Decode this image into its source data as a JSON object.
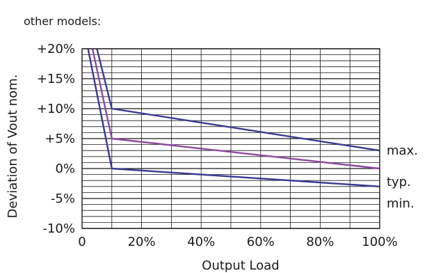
{
  "caption": "other models:",
  "chart_data": {
    "type": "line",
    "title": "",
    "xlabel": "Output Load",
    "ylabel": "Deviation of Vout nom.",
    "xlim": [
      0,
      100
    ],
    "ylim": [
      -10,
      20
    ],
    "x_tick_labels": [
      "0",
      "20%",
      "40%",
      "60%",
      "80%",
      "100%"
    ],
    "x_tick_values": [
      0,
      20,
      40,
      60,
      80,
      100
    ],
    "y_tick_labels": [
      "+20%",
      "+15%",
      "+10%",
      "+5%",
      "0%",
      "-5%",
      "-10%"
    ],
    "y_tick_values": [
      20,
      15,
      10,
      5,
      0,
      -5,
      -10
    ],
    "grid": true,
    "legend_labels": [
      {
        "text": "max.",
        "y": 3
      },
      {
        "text": "typ.",
        "y": -2.2
      },
      {
        "text": "min.",
        "y": -5.8
      }
    ],
    "series": [
      {
        "color": "#3a3a94",
        "points": [
          [
            5,
            20
          ],
          [
            10,
            10
          ],
          [
            100,
            3
          ]
        ]
      },
      {
        "color": "#8e4aa0",
        "points": [
          [
            3.5,
            20
          ],
          [
            10,
            5
          ],
          [
            100,
            0
          ]
        ]
      },
      {
        "color": "#3a3a94",
        "points": [
          [
            2,
            20
          ],
          [
            10,
            0
          ],
          [
            100,
            -3
          ]
        ]
      }
    ]
  }
}
